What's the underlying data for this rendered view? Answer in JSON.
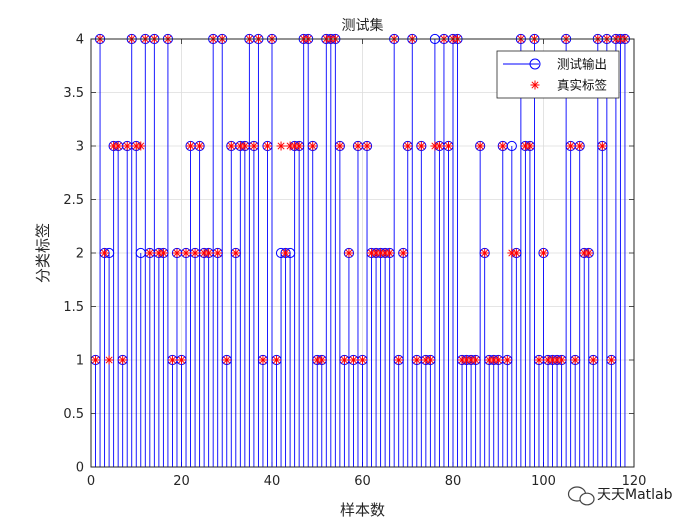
{
  "chart_data": {
    "type": "stem",
    "title": "测试集",
    "xlabel": "样本数",
    "ylabel": "分类标签",
    "xlim": [
      0,
      120
    ],
    "ylim": [
      0,
      4
    ],
    "xticks": [
      0,
      20,
      40,
      60,
      80,
      100,
      120
    ],
    "yticks": [
      0,
      0.5,
      1,
      1.5,
      2,
      2.5,
      3,
      3.5,
      4
    ],
    "grid": true,
    "legend_location": "top-right",
    "series": [
      {
        "name": "测试输出",
        "style": "stem-circle",
        "color": "#0000ff",
        "values": [
          1,
          4,
          2,
          2,
          3,
          3,
          1,
          3,
          4,
          3,
          2,
          4,
          2,
          4,
          2,
          2,
          4,
          1,
          2,
          1,
          2,
          3,
          2,
          3,
          2,
          2,
          4,
          2,
          4,
          1,
          3,
          2,
          3,
          3,
          4,
          3,
          4,
          1,
          3,
          4,
          1,
          2,
          2,
          2,
          3,
          3,
          4,
          4,
          3,
          1,
          1,
          4,
          4,
          4,
          3,
          1,
          2,
          1,
          3,
          1,
          3,
          2,
          2,
          2,
          2,
          2,
          4,
          1,
          2,
          3,
          4,
          1,
          3,
          1,
          1,
          4,
          3,
          4,
          3,
          4,
          4,
          1,
          1,
          1,
          1,
          3,
          2,
          1,
          1,
          1,
          3,
          1,
          3,
          2,
          4,
          3,
          3,
          4,
          1,
          2,
          1,
          1,
          1,
          1,
          4,
          3,
          1,
          3,
          2,
          2,
          1,
          4,
          3,
          4,
          1,
          4,
          4,
          4
        ]
      },
      {
        "name": "真实标签",
        "style": "asterisk",
        "color": "#ff0000",
        "values": [
          1,
          4,
          2,
          1,
          3,
          3,
          1,
          3,
          4,
          3,
          3,
          4,
          2,
          4,
          2,
          2,
          4,
          1,
          2,
          1,
          2,
          3,
          2,
          3,
          2,
          2,
          4,
          2,
          4,
          1,
          3,
          2,
          3,
          3,
          4,
          3,
          4,
          1,
          3,
          4,
          1,
          3,
          2,
          3,
          3,
          3,
          4,
          4,
          3,
          1,
          1,
          4,
          4,
          4,
          3,
          1,
          2,
          1,
          3,
          1,
          3,
          2,
          2,
          2,
          2,
          2,
          4,
          1,
          2,
          3,
          4,
          1,
          3,
          1,
          1,
          3,
          3,
          4,
          3,
          4,
          4,
          1,
          1,
          1,
          1,
          3,
          2,
          1,
          1,
          1,
          3,
          1,
          2,
          2,
          4,
          3,
          3,
          4,
          1,
          2,
          1,
          1,
          1,
          1,
          4,
          3,
          1,
          3,
          2,
          2,
          1,
          4,
          3,
          4,
          1,
          4,
          4,
          4
        ]
      }
    ]
  },
  "watermark": {
    "text": "天天Matlab",
    "icon": "wechat-icon"
  }
}
